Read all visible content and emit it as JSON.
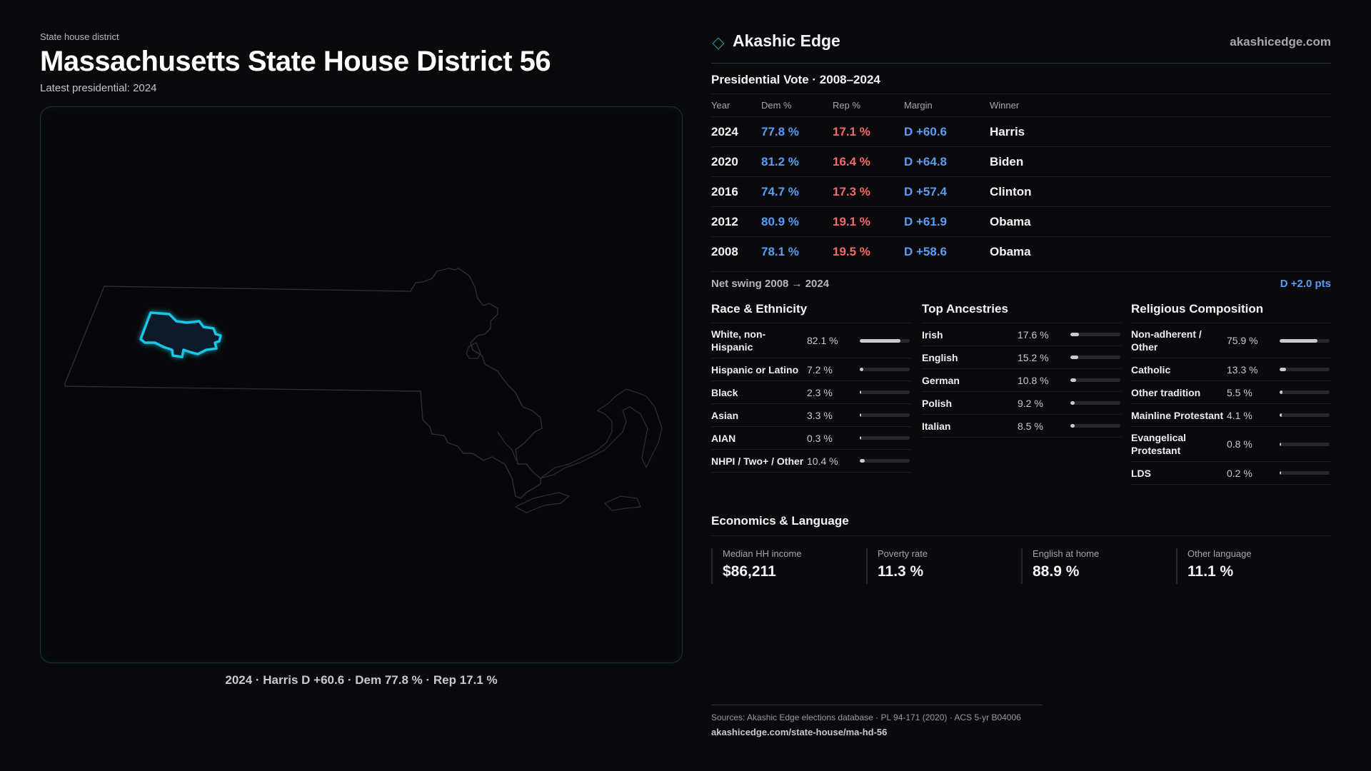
{
  "header": {
    "eyebrow": "State house district",
    "title": "Massachusetts State House District 56",
    "subtitle": "Latest presidential: 2024"
  },
  "map": {
    "caption": "2024 · Harris D +60.6 · Dem 77.8 % · Rep 17.1 %",
    "highlight_color": "#19c6e6"
  },
  "brand": {
    "name": "Akashic Edge",
    "url": "akashicedge.com"
  },
  "presidential": {
    "title": "Presidential Vote · 2008–2024",
    "columns": [
      "Year",
      "Dem %",
      "Rep %",
      "Margin",
      "Winner"
    ],
    "rows": [
      {
        "year": "2024",
        "dem": "77.8 %",
        "rep": "17.1 %",
        "margin": "D +60.6",
        "winner": "Harris"
      },
      {
        "year": "2020",
        "dem": "81.2 %",
        "rep": "16.4 %",
        "margin": "D +64.8",
        "winner": "Biden"
      },
      {
        "year": "2016",
        "dem": "74.7 %",
        "rep": "17.3 %",
        "margin": "D +57.4",
        "winner": "Clinton"
      },
      {
        "year": "2012",
        "dem": "80.9 %",
        "rep": "19.1 %",
        "margin": "D +61.9",
        "winner": "Obama"
      },
      {
        "year": "2008",
        "dem": "78.1 %",
        "rep": "19.5 %",
        "margin": "D +58.6",
        "winner": "Obama"
      }
    ],
    "swing_label": "Net swing 2008 → 2024",
    "swing_value": "D +2.0 pts",
    "dem_color": "#5b9cf7",
    "rep_color": "#f26b6b"
  },
  "race": {
    "title": "Race & Ethnicity",
    "rows": [
      {
        "label": "White, non-Hispanic",
        "value": "82.1 %",
        "pct": 82.1
      },
      {
        "label": "Hispanic or Latino",
        "value": "7.2 %",
        "pct": 7.2
      },
      {
        "label": "Black",
        "value": "2.3 %",
        "pct": 2.3
      },
      {
        "label": "Asian",
        "value": "3.3 %",
        "pct": 3.3
      },
      {
        "label": "AIAN",
        "value": "0.3 %",
        "pct": 0.3
      },
      {
        "label": "NHPI / Two+ / Other",
        "value": "10.4 %",
        "pct": 10.4
      }
    ]
  },
  "ancestry": {
    "title": "Top Ancestries",
    "rows": [
      {
        "label": "Irish",
        "value": "17.6 %",
        "pct": 17.6
      },
      {
        "label": "English",
        "value": "15.2 %",
        "pct": 15.2
      },
      {
        "label": "German",
        "value": "10.8 %",
        "pct": 10.8
      },
      {
        "label": "Polish",
        "value": "9.2 %",
        "pct": 9.2
      },
      {
        "label": "Italian",
        "value": "8.5 %",
        "pct": 8.5
      }
    ]
  },
  "religion": {
    "title": "Religious Composition",
    "rows": [
      {
        "label": "Non-adherent / Other",
        "value": "75.9 %",
        "pct": 75.9
      },
      {
        "label": "Catholic",
        "value": "13.3 %",
        "pct": 13.3
      },
      {
        "label": "Other tradition",
        "value": "5.5 %",
        "pct": 5.5
      },
      {
        "label": "Mainline Protestant",
        "value": "4.1 %",
        "pct": 4.1
      },
      {
        "label": "Evangelical Protestant",
        "value": "0.8 %",
        "pct": 0.8
      },
      {
        "label": "LDS",
        "value": "0.2 %",
        "pct": 0.2
      }
    ]
  },
  "economics": {
    "title": "Economics & Language",
    "cells": [
      {
        "label": "Median HH income",
        "value": "$86,211"
      },
      {
        "label": "Poverty rate",
        "value": "11.3 %"
      },
      {
        "label": "English at home",
        "value": "88.9 %"
      },
      {
        "label": "Other language",
        "value": "11.1 %"
      }
    ]
  },
  "footer": {
    "sources": "Sources: Akashic Edge elections database · PL 94-171 (2020) · ACS 5-yr B04006",
    "url": "akashicedge.com/state-house/ma-hd-56"
  }
}
